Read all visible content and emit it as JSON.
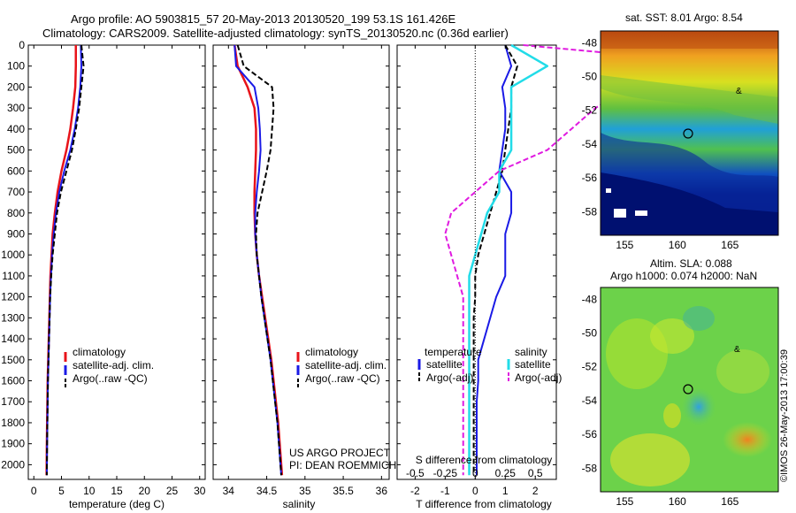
{
  "header": {
    "line1": "Argo profile: AO 5903815_57 20-May-2013 20130520_199 53.1S 161.426E",
    "line2": "Climatology: CARS2009. Satellite-adjusted climatology: synTS_20130520.nc (0.36d earlier)"
  },
  "colors": {
    "climatology": "#e8131a",
    "satellite": "#1a1ae6",
    "argo": "#000000",
    "satellite_s": "#22dce8",
    "argo_s": "#e01ae0"
  },
  "depth_ticks": [
    "0",
    "100",
    "200",
    "300",
    "400",
    "500",
    "600",
    "700",
    "800",
    "900",
    "1000",
    "1100",
    "1200",
    "1300",
    "1400",
    "1500",
    "1600",
    "1700",
    "1800",
    "1900",
    "2000"
  ],
  "chart_data": [
    {
      "type": "line",
      "xlabel": "temperature (deg C)",
      "xlim": [
        -1,
        31
      ],
      "ylim": [
        2070,
        0
      ],
      "xticks": [
        "0",
        "5",
        "10",
        "15",
        "20",
        "25",
        "30"
      ],
      "legend": [
        "climatology",
        "satellite-adj. clim.",
        "Argo(..raw -QC)"
      ],
      "series": [
        {
          "name": "climatology",
          "x": [
            7.6,
            7.6,
            7.5,
            7.1,
            6.6,
            5.9,
            5.0,
            4.3,
            3.8,
            3.4,
            3.2,
            3.0,
            2.9,
            2.8,
            2.7,
            2.6,
            2.5,
            2.45,
            2.4,
            2.35,
            2.3
          ],
          "y": [
            0,
            100,
            200,
            300,
            400,
            500,
            600,
            700,
            800,
            900,
            1000,
            1100,
            1200,
            1300,
            1400,
            1500,
            1600,
            1700,
            1800,
            1900,
            2050
          ]
        },
        {
          "name": "satellite-adj. clim.",
          "x": [
            8.5,
            8.6,
            8.4,
            8.0,
            7.4,
            6.6,
            5.5,
            4.6,
            4.0,
            3.6,
            3.3,
            3.1,
            2.95,
            2.85,
            2.75,
            2.65,
            2.55,
            2.5,
            2.45,
            2.4,
            2.35
          ],
          "y": [
            0,
            100,
            200,
            300,
            400,
            500,
            600,
            700,
            800,
            900,
            1000,
            1100,
            1200,
            1300,
            1400,
            1500,
            1600,
            1700,
            1800,
            1900,
            2050
          ]
        },
        {
          "name": "Argo(..raw -QC)",
          "x": [
            8.6,
            9.0,
            8.6,
            8.2,
            7.6,
            6.9,
            5.9,
            4.9,
            4.2,
            3.8,
            3.4,
            3.15,
            2.95,
            2.85,
            2.75,
            2.65,
            2.55,
            2.5,
            2.45,
            2.4,
            2.35
          ],
          "y": [
            0,
            100,
            200,
            300,
            400,
            500,
            600,
            700,
            800,
            900,
            1000,
            1100,
            1200,
            1300,
            1400,
            1500,
            1600,
            1700,
            1800,
            1900,
            2050
          ]
        }
      ]
    },
    {
      "type": "line",
      "xlabel": "salinity",
      "xlim": [
        33.8,
        36.1
      ],
      "ylim": [
        2070,
        0
      ],
      "xticks": [
        "34",
        "34.5",
        "35",
        "35.5",
        "36"
      ],
      "legend": [
        "climatology",
        "satellite-adj. clim.",
        "Argo(..raw -QC)"
      ],
      "annotation": [
        "US ARGO PROJECT",
        "PI: DEAN ROEMMICH"
      ],
      "series": [
        {
          "name": "climatology",
          "x": [
            34.08,
            34.12,
            34.25,
            34.34,
            34.36,
            34.36,
            34.35,
            34.34,
            34.34,
            34.35,
            34.37,
            34.4,
            34.44,
            34.48,
            34.52,
            34.56,
            34.59,
            34.62,
            34.65,
            34.67,
            34.7
          ],
          "y": [
            0,
            100,
            200,
            300,
            400,
            500,
            600,
            700,
            800,
            900,
            1000,
            1100,
            1200,
            1300,
            1400,
            1500,
            1600,
            1700,
            1800,
            1900,
            2050
          ]
        },
        {
          "name": "satellite-adj. clim.",
          "x": [
            34.08,
            34.1,
            34.34,
            34.39,
            34.41,
            34.42,
            34.4,
            34.37,
            34.35,
            34.35,
            34.37,
            34.4,
            34.43,
            34.47,
            34.51,
            34.55,
            34.58,
            34.61,
            34.64,
            34.66,
            34.69
          ],
          "y": [
            0,
            100,
            200,
            300,
            400,
            500,
            600,
            700,
            800,
            900,
            1000,
            1100,
            1200,
            1300,
            1400,
            1500,
            1600,
            1700,
            1800,
            1900,
            2050
          ]
        },
        {
          "name": "Argo(..raw -QC)",
          "x": [
            34.12,
            34.2,
            34.57,
            34.59,
            34.57,
            34.55,
            34.5,
            34.44,
            34.38,
            34.36,
            34.37,
            34.4,
            34.43,
            34.47,
            34.51,
            34.55,
            34.58,
            34.61,
            34.64,
            34.66,
            34.69
          ],
          "y": [
            0,
            100,
            200,
            300,
            400,
            500,
            600,
            700,
            800,
            900,
            1000,
            1100,
            1200,
            1300,
            1400,
            1500,
            1600,
            1700,
            1800,
            1900,
            2050
          ]
        }
      ]
    },
    {
      "type": "line",
      "xlabel": "T difference from climatology",
      "x2label": "S difference from climatology",
      "xlim": [
        -2.6,
        2.7
      ],
      "ylim": [
        2070,
        0
      ],
      "xticks": [
        "-2",
        "-1",
        "0",
        "1",
        "2"
      ],
      "x2ticks": [
        "-0.5",
        "-0.25",
        "0",
        "0.25",
        "0.5"
      ],
      "legend_t": [
        "temperature",
        "satellite",
        "Argo(-adj)"
      ],
      "legend_s": [
        "salinity",
        "satellite",
        "Argo(-adj)"
      ],
      "series": [
        {
          "name": "satellite",
          "x": [
            1.0,
            1.2,
            0.9,
            1.0,
            1.0,
            0.9,
            0.8,
            1.2,
            1.2,
            1.0,
            1.0,
            1.0,
            0.7,
            0.5,
            0.3,
            0.1,
            0.1,
            0.05,
            0.05,
            0.05,
            0.05
          ],
          "y": [
            0,
            100,
            200,
            300,
            400,
            500,
            600,
            700,
            800,
            900,
            1000,
            1100,
            1200,
            1300,
            1400,
            1500,
            1600,
            1700,
            1800,
            1900,
            2050
          ]
        },
        {
          "name": "Argo(-adj)",
          "x": [
            1.0,
            1.4,
            1.2,
            1.2,
            1.1,
            1.0,
            0.9,
            0.7,
            0.5,
            0.3,
            0.1,
            0.0,
            0.0,
            -0.05,
            -0.05,
            -0.05,
            -0.05,
            -0.05,
            -0.05,
            -0.05,
            -0.05
          ],
          "y": [
            0,
            100,
            200,
            300,
            400,
            500,
            600,
            700,
            800,
            900,
            1000,
            1100,
            1200,
            1300,
            1400,
            1500,
            1600,
            1700,
            1800,
            1900,
            2050
          ]
        },
        {
          "name": "satellite",
          "x": [
            0.3,
            0.6,
            0.3,
            0.3,
            0.3,
            0.3,
            0.2,
            0.2,
            0.1,
            0.05,
            0.0,
            -0.05,
            -0.05,
            -0.05,
            -0.05,
            -0.05,
            -0.05,
            -0.05,
            -0.05,
            -0.05,
            -0.05
          ],
          "y": [
            0,
            100,
            200,
            300,
            400,
            500,
            600,
            700,
            800,
            900,
            1000,
            1100,
            1200,
            1300,
            1400,
            1500,
            1600,
            1700,
            1800,
            1900,
            2050
          ]
        },
        {
          "name": "Argo(-adj)",
          "x": [
            0.4,
            2.3,
            1.3,
            1.0,
            0.8,
            0.6,
            0.2,
            0.0,
            -0.2,
            -0.25,
            -0.2,
            -0.15,
            -0.1,
            -0.1,
            -0.1,
            -0.1,
            -0.1,
            -0.1,
            -0.1,
            -0.1,
            -0.1
          ],
          "y": [
            0,
            100,
            200,
            300,
            400,
            500,
            600,
            700,
            800,
            900,
            1000,
            1100,
            1200,
            1300,
            1400,
            1500,
            1600,
            1700,
            1800,
            1900,
            2050
          ]
        }
      ]
    },
    {
      "type": "heatmap",
      "title": "sat. SST: 8.01 Argo: 8.54",
      "xticks": [
        "155",
        "160",
        "165"
      ],
      "yticks": [
        "-48",
        "-50",
        "-52",
        "-54",
        "-56",
        "-58"
      ]
    },
    {
      "type": "heatmap",
      "title_line1": "Altim. SLA: 0.088",
      "title_line2": "Argo h1000: 0.074 h2000: NaN",
      "xticks": [
        "155",
        "160",
        "165"
      ],
      "yticks": [
        "-48",
        "-50",
        "-52",
        "-54",
        "-56",
        "-58"
      ]
    }
  ],
  "stamp": "©IMOS 26-May-2013 17:00:39"
}
